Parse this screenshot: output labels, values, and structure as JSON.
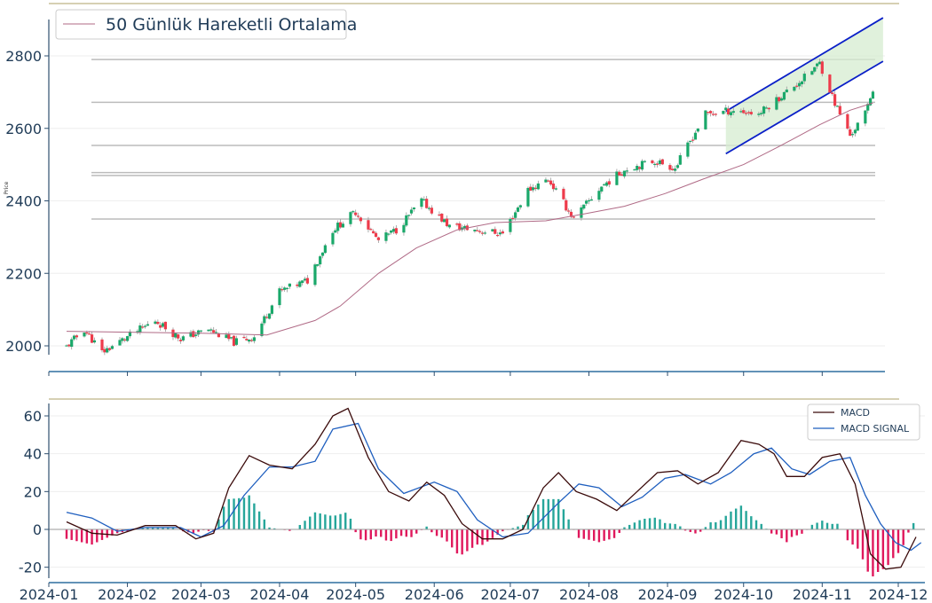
{
  "chart_data": [
    {
      "type": "candlestick",
      "title": "",
      "ylabel": "Price",
      "ylim": [
        1970,
        2900
      ],
      "yticks": [
        2000,
        2200,
        2400,
        2600,
        2800
      ],
      "legend": {
        "placement": "top-left",
        "entries": [
          "50 Günlük Hareketli Ortalama"
        ]
      },
      "horizontal_levels": [
        2350,
        2470,
        2478,
        2553,
        2672,
        2790
      ],
      "anchors": [
        {
          "date": "2024-01-08",
          "price": 1998
        },
        {
          "date": "2024-01-15",
          "price": 2045
        },
        {
          "date": "2024-01-22",
          "price": 1982
        },
        {
          "date": "2024-02-01",
          "price": 2025
        },
        {
          "date": "2024-02-12",
          "price": 2070
        },
        {
          "date": "2024-02-22",
          "price": 2020
        },
        {
          "date": "2024-03-04",
          "price": 2045
        },
        {
          "date": "2024-03-14",
          "price": 2010
        },
        {
          "date": "2024-03-22",
          "price": 2025
        },
        {
          "date": "2024-04-01",
          "price": 2150
        },
        {
          "date": "2024-04-12",
          "price": 2180
        },
        {
          "date": "2024-04-22",
          "price": 2320
        },
        {
          "date": "2024-05-01",
          "price": 2370
        },
        {
          "date": "2024-05-10",
          "price": 2290
        },
        {
          "date": "2024-05-17",
          "price": 2320
        },
        {
          "date": "2024-05-27",
          "price": 2400
        },
        {
          "date": "2024-06-07",
          "price": 2330
        },
        {
          "date": "2024-06-17",
          "price": 2320
        },
        {
          "date": "2024-06-28",
          "price": 2310
        },
        {
          "date": "2024-07-08",
          "price": 2430
        },
        {
          "date": "2024-07-16",
          "price": 2460
        },
        {
          "date": "2024-07-26",
          "price": 2350
        },
        {
          "date": "2024-08-06",
          "price": 2440
        },
        {
          "date": "2024-08-16",
          "price": 2490
        },
        {
          "date": "2024-08-27",
          "price": 2510
        },
        {
          "date": "2024-09-04",
          "price": 2490
        },
        {
          "date": "2024-09-16",
          "price": 2640
        },
        {
          "date": "2024-09-27",
          "price": 2650
        },
        {
          "date": "2024-10-07",
          "price": 2640
        },
        {
          "date": "2024-10-16",
          "price": 2690
        },
        {
          "date": "2024-10-25",
          "price": 2740
        },
        {
          "date": "2024-10-31",
          "price": 2780
        },
        {
          "date": "2024-11-06",
          "price": 2670
        },
        {
          "date": "2024-11-12",
          "price": 2580
        },
        {
          "date": "2024-11-18",
          "price": 2640
        },
        {
          "date": "2024-11-21",
          "price": 2710
        }
      ],
      "moving_average": [
        {
          "date": "2024-01-08",
          "value": 2040
        },
        {
          "date": "2024-03-01",
          "value": 2035
        },
        {
          "date": "2024-03-27",
          "value": 2030
        },
        {
          "date": "2024-04-15",
          "value": 2070
        },
        {
          "date": "2024-04-25",
          "value": 2110
        },
        {
          "date": "2024-05-10",
          "value": 2200
        },
        {
          "date": "2024-05-25",
          "value": 2270
        },
        {
          "date": "2024-06-10",
          "value": 2320
        },
        {
          "date": "2024-06-25",
          "value": 2340
        },
        {
          "date": "2024-07-15",
          "value": 2345
        },
        {
          "date": "2024-07-31",
          "value": 2365
        },
        {
          "date": "2024-08-15",
          "value": 2385
        },
        {
          "date": "2024-08-31",
          "value": 2420
        },
        {
          "date": "2024-09-15",
          "value": 2460
        },
        {
          "date": "2024-10-01",
          "value": 2500
        },
        {
          "date": "2024-10-15",
          "value": 2550
        },
        {
          "date": "2024-10-31",
          "value": 2610
        },
        {
          "date": "2024-11-12",
          "value": 2650
        },
        {
          "date": "2024-11-21",
          "value": 2670
        }
      ],
      "channel": {
        "start": "2024-09-24",
        "end": "2024-11-25",
        "upper": [
          2647,
          2905
        ],
        "lower": [
          2530,
          2785
        ]
      }
    },
    {
      "type": "macd",
      "ylim": [
        -25,
        65
      ],
      "yticks": [
        -20,
        0,
        20,
        40,
        60
      ],
      "xticks": [
        "2024-01",
        "2024-02",
        "2024-03",
        "2024-04",
        "2024-05",
        "2024-06",
        "2024-07",
        "2024-08",
        "2024-09",
        "2024-10",
        "2024-11",
        "2024-12"
      ],
      "legend": {
        "placement": "top-right",
        "entries": [
          "MACD",
          "MACD SIGNAL"
        ]
      },
      "macd": [
        {
          "date": "2024-01-08",
          "value": 4
        },
        {
          "date": "2024-01-18",
          "value": -2
        },
        {
          "date": "2024-01-28",
          "value": -3
        },
        {
          "date": "2024-02-08",
          "value": 2
        },
        {
          "date": "2024-02-20",
          "value": 2
        },
        {
          "date": "2024-02-28",
          "value": -5
        },
        {
          "date": "2024-03-06",
          "value": -2
        },
        {
          "date": "2024-03-12",
          "value": 22
        },
        {
          "date": "2024-03-20",
          "value": 39
        },
        {
          "date": "2024-03-28",
          "value": 34
        },
        {
          "date": "2024-04-06",
          "value": 32
        },
        {
          "date": "2024-04-15",
          "value": 45
        },
        {
          "date": "2024-04-22",
          "value": 60
        },
        {
          "date": "2024-04-28",
          "value": 64
        },
        {
          "date": "2024-05-06",
          "value": 38
        },
        {
          "date": "2024-05-14",
          "value": 20
        },
        {
          "date": "2024-05-22",
          "value": 15
        },
        {
          "date": "2024-05-29",
          "value": 25
        },
        {
          "date": "2024-06-05",
          "value": 18
        },
        {
          "date": "2024-06-12",
          "value": 3
        },
        {
          "date": "2024-06-20",
          "value": -5
        },
        {
          "date": "2024-06-28",
          "value": -5
        },
        {
          "date": "2024-07-06",
          "value": 0
        },
        {
          "date": "2024-07-14",
          "value": 22
        },
        {
          "date": "2024-07-20",
          "value": 30
        },
        {
          "date": "2024-07-27",
          "value": 20
        },
        {
          "date": "2024-08-04",
          "value": 16
        },
        {
          "date": "2024-08-12",
          "value": 10
        },
        {
          "date": "2024-08-20",
          "value": 20
        },
        {
          "date": "2024-08-28",
          "value": 30
        },
        {
          "date": "2024-09-05",
          "value": 31
        },
        {
          "date": "2024-09-13",
          "value": 24
        },
        {
          "date": "2024-09-21",
          "value": 30
        },
        {
          "date": "2024-09-30",
          "value": 47
        },
        {
          "date": "2024-10-07",
          "value": 45
        },
        {
          "date": "2024-10-13",
          "value": 40
        },
        {
          "date": "2024-10-18",
          "value": 28
        },
        {
          "date": "2024-10-25",
          "value": 28
        },
        {
          "date": "2024-11-01",
          "value": 38
        },
        {
          "date": "2024-11-08",
          "value": 40
        },
        {
          "date": "2024-11-14",
          "value": 24
        },
        {
          "date": "2024-11-20",
          "value": -13
        },
        {
          "date": "2024-11-26",
          "value": -21
        },
        {
          "date": "2024-12-02",
          "value": -20
        },
        {
          "date": "2024-12-08",
          "value": -4
        }
      ],
      "signal": [
        {
          "date": "2024-01-08",
          "value": 9
        },
        {
          "date": "2024-01-18",
          "value": 6
        },
        {
          "date": "2024-01-28",
          "value": -1
        },
        {
          "date": "2024-02-08",
          "value": 1
        },
        {
          "date": "2024-02-22",
          "value": 1
        },
        {
          "date": "2024-03-01",
          "value": -4
        },
        {
          "date": "2024-03-10",
          "value": 2
        },
        {
          "date": "2024-03-18",
          "value": 18
        },
        {
          "date": "2024-03-28",
          "value": 33
        },
        {
          "date": "2024-04-06",
          "value": 33
        },
        {
          "date": "2024-04-15",
          "value": 36
        },
        {
          "date": "2024-04-22",
          "value": 53
        },
        {
          "date": "2024-05-02",
          "value": 56
        },
        {
          "date": "2024-05-10",
          "value": 32
        },
        {
          "date": "2024-05-20",
          "value": 19
        },
        {
          "date": "2024-06-01",
          "value": 25
        },
        {
          "date": "2024-06-10",
          "value": 20
        },
        {
          "date": "2024-06-18",
          "value": 5
        },
        {
          "date": "2024-06-28",
          "value": -4
        },
        {
          "date": "2024-07-08",
          "value": -2
        },
        {
          "date": "2024-07-20",
          "value": 14
        },
        {
          "date": "2024-07-28",
          "value": 24
        },
        {
          "date": "2024-08-05",
          "value": 22
        },
        {
          "date": "2024-08-14",
          "value": 12
        },
        {
          "date": "2024-08-22",
          "value": 17
        },
        {
          "date": "2024-08-31",
          "value": 27
        },
        {
          "date": "2024-09-08",
          "value": 29
        },
        {
          "date": "2024-09-18",
          "value": 24
        },
        {
          "date": "2024-09-26",
          "value": 30
        },
        {
          "date": "2024-10-05",
          "value": 40
        },
        {
          "date": "2024-10-12",
          "value": 43
        },
        {
          "date": "2024-10-20",
          "value": 32
        },
        {
          "date": "2024-10-27",
          "value": 29
        },
        {
          "date": "2024-11-04",
          "value": 36
        },
        {
          "date": "2024-11-12",
          "value": 38
        },
        {
          "date": "2024-11-18",
          "value": 18
        },
        {
          "date": "2024-11-24",
          "value": 3
        },
        {
          "date": "2024-11-30",
          "value": -7
        },
        {
          "date": "2024-12-06",
          "value": -11
        },
        {
          "date": "2024-12-10",
          "value": -7
        }
      ]
    }
  ]
}
